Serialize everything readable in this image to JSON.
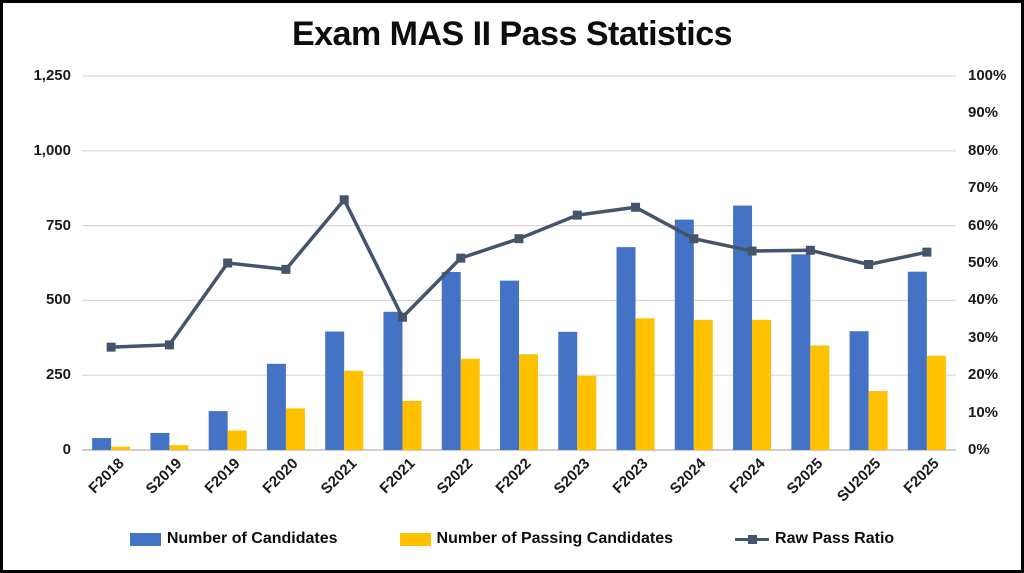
{
  "page": {
    "background": "#ffffff",
    "border_color": "#000000"
  },
  "chart_data": {
    "type": "bar",
    "subtype": "combo-bar-line-dual-axis",
    "title": "Exam MAS II Pass Statistics",
    "categories": [
      "F2018",
      "S2019",
      "F2019",
      "F2020",
      "S2021",
      "F2021",
      "S2022",
      "F2022",
      "S2023",
      "F2023",
      "S2024",
      "F2024",
      "S2025",
      "SU2025",
      "F2025"
    ],
    "series": [
      {
        "name": "Number of Candidates",
        "type": "bar",
        "axis": "left",
        "color": "#4472C4",
        "values": [
          40,
          57,
          130,
          288,
          396,
          462,
          595,
          566,
          395,
          678,
          770,
          817,
          654,
          397,
          596
        ]
      },
      {
        "name": "Number of Passing Candidates",
        "type": "bar",
        "axis": "left",
        "color": "#FFC000",
        "values": [
          11,
          16,
          65,
          139,
          265,
          164,
          305,
          320,
          248,
          440,
          435,
          435,
          349,
          197,
          315
        ]
      },
      {
        "name": "Raw Pass Ratio",
        "type": "line",
        "axis": "right",
        "color": "#44546A",
        "marker": "square",
        "values_percent": [
          27.5,
          28.1,
          50.0,
          48.3,
          66.9,
          35.5,
          51.3,
          56.5,
          62.8,
          64.9,
          56.5,
          53.2,
          53.4,
          49.6,
          52.9
        ]
      }
    ],
    "left_axis": {
      "min": 0,
      "max": 1250,
      "tick_step": 250,
      "tick_labels": [
        "0",
        "250",
        "500",
        "750",
        "1,000",
        "1,250"
      ]
    },
    "right_axis": {
      "min": 0,
      "max": 100,
      "tick_step": 10,
      "tick_labels": [
        "0%",
        "10%",
        "20%",
        "30%",
        "40%",
        "50%",
        "60%",
        "70%",
        "80%",
        "90%",
        "100%"
      ]
    },
    "gridlines": {
      "color": "#D9D9D9",
      "axis_line_color": "#BFBFBF",
      "horizontal_at_left_ticks": true
    },
    "legend_position": "bottom"
  }
}
